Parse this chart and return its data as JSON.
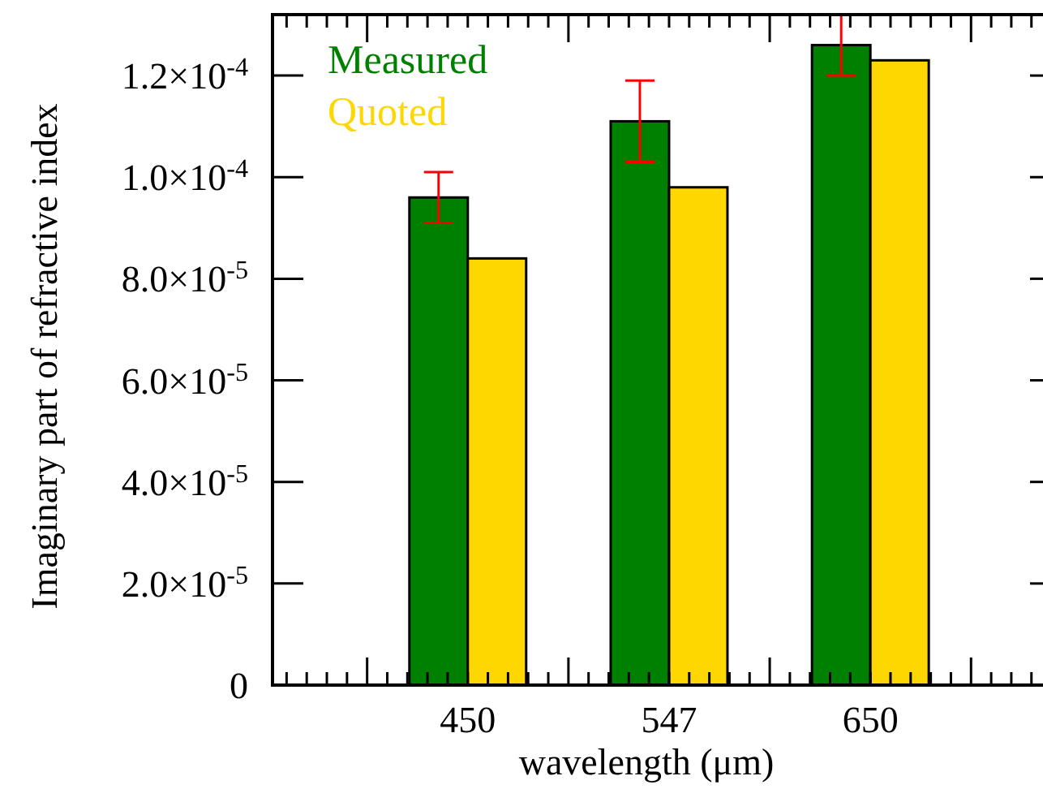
{
  "chart_data": {
    "type": "bar",
    "xlabel": "wavelength (μm)",
    "ylabel": "Imaginary part of refractive index",
    "categories": [
      "450",
      "547",
      "650"
    ],
    "series": [
      {
        "name": "Measured",
        "color": "#008000",
        "values": [
          9.6e-05,
          0.000111,
          0.000126
        ],
        "errors": [
          5e-06,
          8e-06,
          6e-06
        ]
      },
      {
        "name": "Quoted",
        "color": "#ffd700",
        "values": [
          8.4e-05,
          9.8e-05,
          0.000123
        ]
      }
    ],
    "ylim": [
      0,
      0.000132
    ],
    "yticks": [
      0,
      {
        "value": 2e-05,
        "label": "2.0×10$^{-5}$"
      },
      {
        "value": 4e-05,
        "label": "4.0×10$^{-5}$"
      },
      {
        "value": 6e-05,
        "label": "6.0×10$^{-5}$"
      },
      {
        "value": 8e-05,
        "label": "8.0×10$^{-5}$"
      },
      {
        "value": 0.0001,
        "label": "1.0×10$^{-4}$"
      },
      {
        "value": 0.00012,
        "label": "1.2×10$^{-4}$"
      }
    ],
    "legend": "top left"
  }
}
